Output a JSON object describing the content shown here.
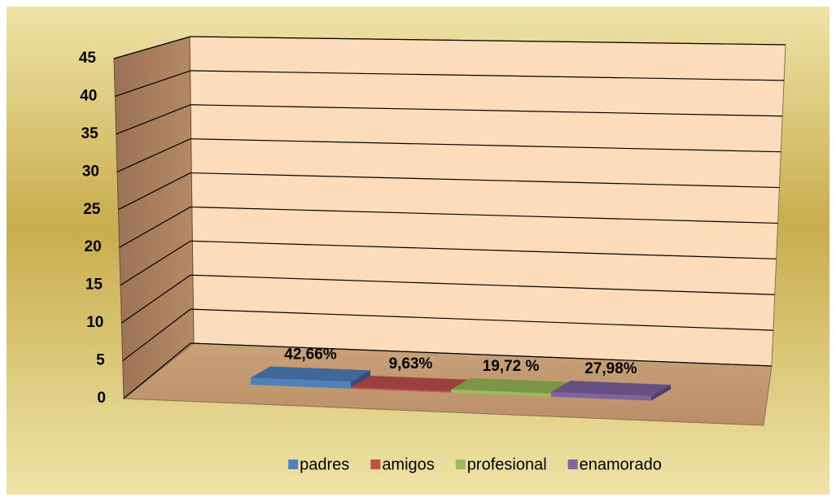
{
  "chart_data": {
    "type": "bar3d",
    "series": [
      {
        "name": "padres",
        "color": "#4f81bd",
        "values": [
          42.66
        ],
        "value_labels": [
          "42,66%"
        ]
      },
      {
        "name": "amigos",
        "color": "#c0504d",
        "values": [
          9.63
        ],
        "value_labels": [
          "9,63%"
        ]
      },
      {
        "name": "profesional",
        "color": "#9bbb59",
        "values": [
          19.72
        ],
        "value_labels": [
          "19,72 %"
        ]
      },
      {
        "name": "enamorado",
        "color": "#8064a2",
        "values": [
          27.98
        ],
        "value_labels": [
          "27,98%"
        ]
      }
    ],
    "ylim": [
      0,
      45
    ],
    "yticks": [
      0,
      5,
      10,
      15,
      20,
      25,
      30,
      35,
      40,
      45
    ],
    "grid": true,
    "legend": "bottom"
  }
}
